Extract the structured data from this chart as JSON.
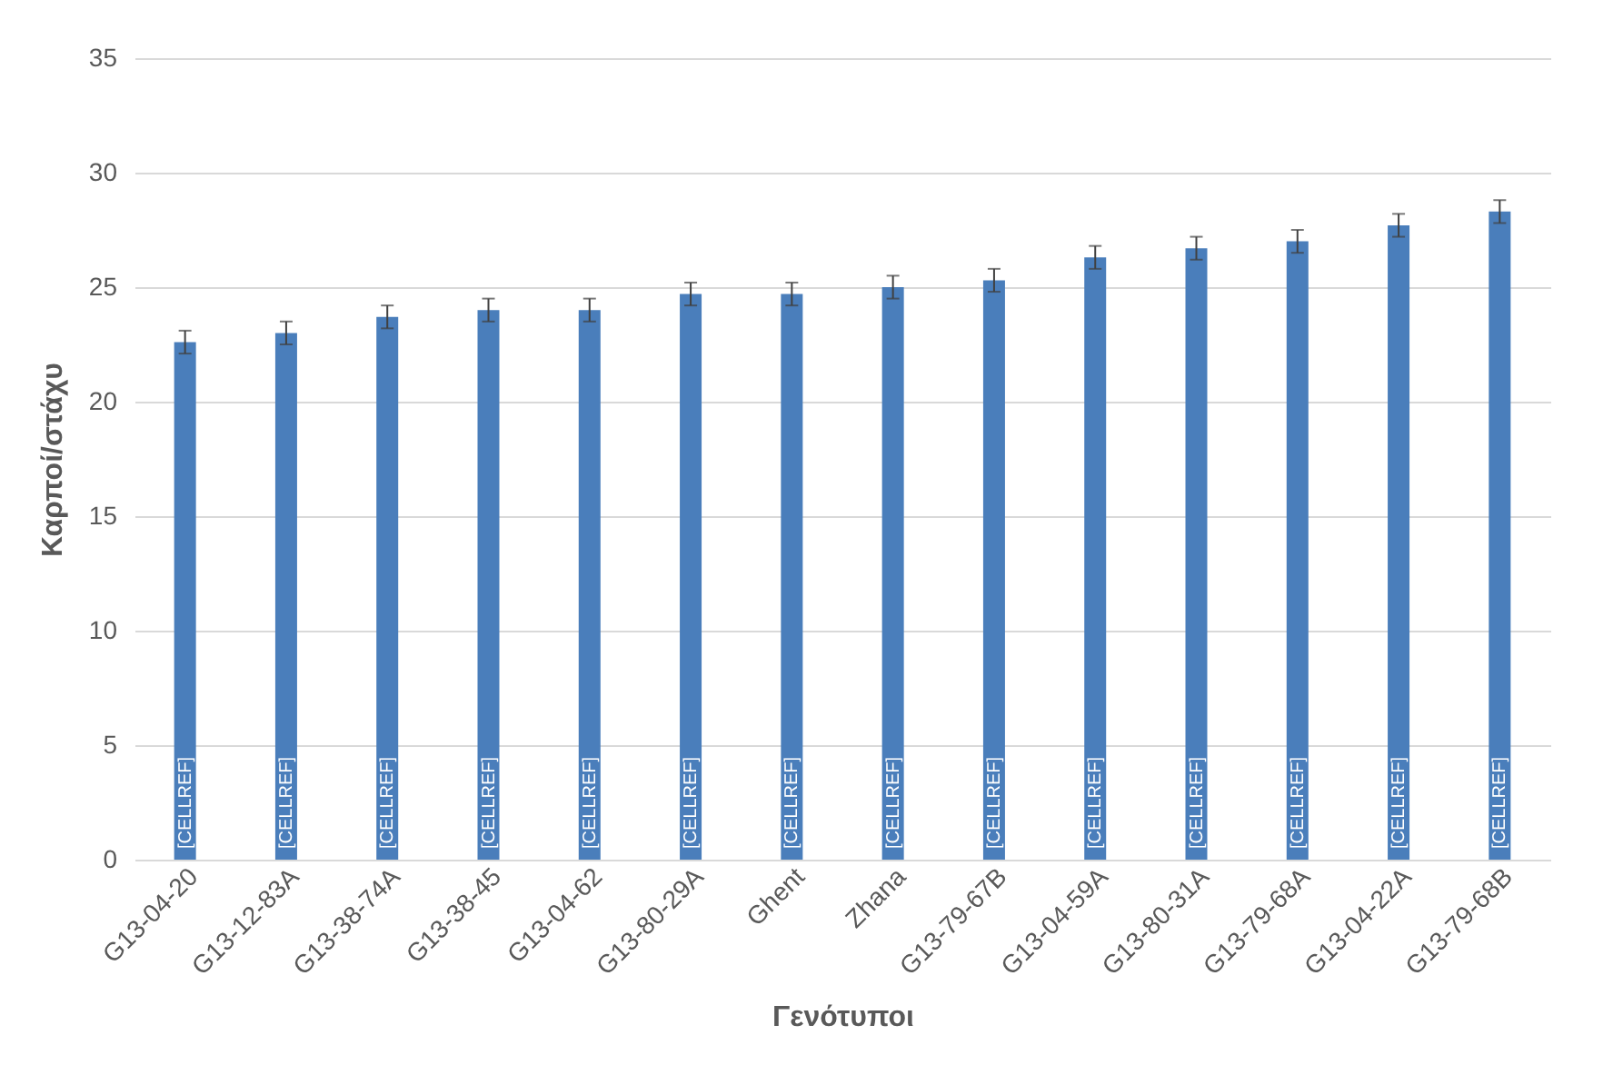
{
  "chart_data": {
    "type": "bar",
    "xlabel": "Γενότυποι",
    "ylabel": "Καρποί/στάχυ",
    "categories": [
      "G13-04-20",
      "G13-12-83A",
      "G13-38-74A",
      "G13-38-45",
      "G13-04-62",
      "G13-80-29A",
      "Ghent",
      "Zhana",
      "G13-79-67B",
      "G13-04-59A",
      "G13-80-31A",
      "G13-79-68A",
      "G13-04-22A",
      "G13-79-68B"
    ],
    "values": [
      22.6,
      23.0,
      23.7,
      24.0,
      24.0,
      24.7,
      24.7,
      25.0,
      25.3,
      26.3,
      26.7,
      27.0,
      27.7,
      28.3
    ],
    "errors": [
      0.5,
      0.5,
      0.5,
      0.5,
      0.5,
      0.5,
      0.5,
      0.5,
      0.5,
      0.5,
      0.5,
      0.5,
      0.5,
      0.5
    ],
    "value_labels": [
      "[CELLREF]",
      "[CELLREF]",
      "[CELLREF]",
      "[CELLREF]",
      "[CELLREF]",
      "[CELLREF]",
      "[CELLREF]",
      "[CELLREF]",
      "[CELLREF]",
      "[CELLREF]",
      "[CELLREF]",
      "[CELLREF]",
      "[CELLREF]",
      "[CELLREF]"
    ],
    "color": "#4a7ebb",
    "ylim": [
      0,
      35
    ],
    "yticks": [
      0,
      5,
      10,
      15,
      20,
      25,
      30,
      35
    ],
    "grid": "y"
  }
}
